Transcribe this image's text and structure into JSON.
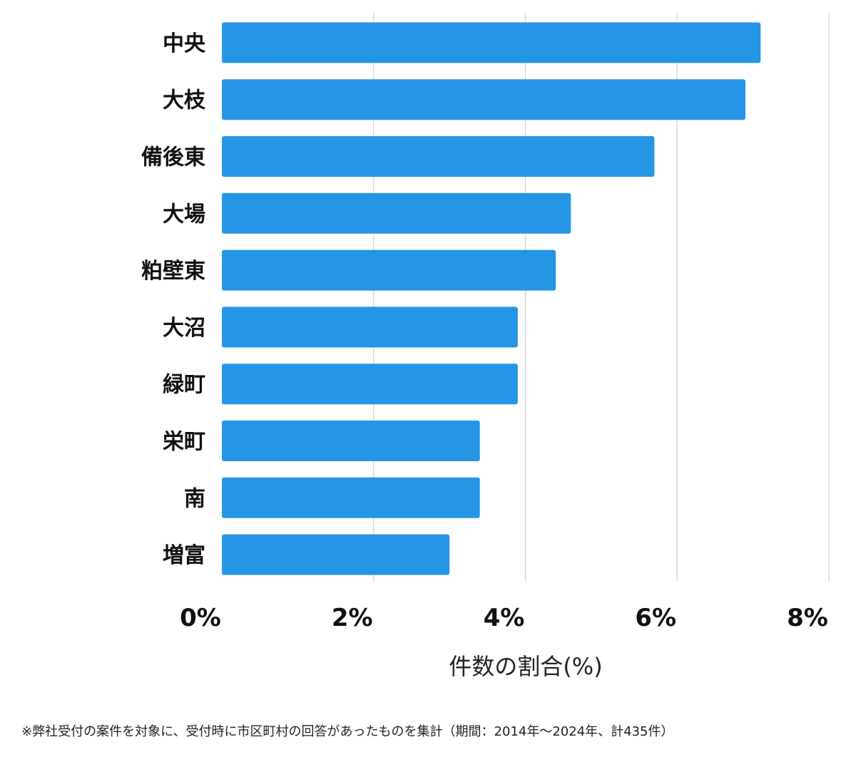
{
  "chart_data": {
    "type": "bar",
    "orientation": "horizontal",
    "categories": [
      "中央",
      "大枝",
      "備後東",
      "大場",
      "粕壁東",
      "大沼",
      "緑町",
      "栄町",
      "南",
      "増富"
    ],
    "values": [
      7.1,
      6.9,
      5.7,
      4.6,
      4.4,
      3.9,
      3.9,
      3.4,
      3.4,
      3.0
    ],
    "xlim": [
      0,
      8
    ],
    "ticks": [
      0,
      2,
      4,
      6,
      8
    ],
    "tick_labels": [
      "0%",
      "2%",
      "4%",
      "6%",
      "8%"
    ],
    "xlabel": "件数の割合(%)",
    "title": "",
    "ylabel": "",
    "grid": true,
    "bar_color": "#2595e6",
    "grid_color": "#d4d4d4"
  },
  "footnote": "※弊社受付の案件を対象に、受付時に市区町村の回答があったものを集計（期間：2014年～2024年、計435件）"
}
